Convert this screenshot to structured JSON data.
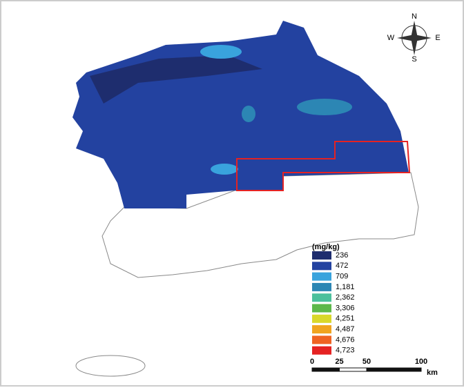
{
  "compass": {
    "north": "N",
    "east": "E",
    "south": "S",
    "west": "W"
  },
  "legend": {
    "title": "(mg/kg)",
    "items": [
      {
        "label": "236",
        "color": "#1e2d6e"
      },
      {
        "label": "472",
        "color": "#2342a0"
      },
      {
        "label": "709",
        "color": "#39a3dd"
      },
      {
        "label": "1,181",
        "color": "#2c86b4"
      },
      {
        "label": "2,362",
        "color": "#4cc09c"
      },
      {
        "label": "3,306",
        "color": "#5db84a"
      },
      {
        "label": "4,251",
        "color": "#d9d82a"
      },
      {
        "label": "4,487",
        "color": "#f0a41f"
      },
      {
        "label": "4,676",
        "color": "#ef6322"
      },
      {
        "label": "4,723",
        "color": "#e52222"
      }
    ]
  },
  "scale": {
    "ticks": [
      0,
      25,
      50,
      100
    ],
    "unit": "km"
  }
}
